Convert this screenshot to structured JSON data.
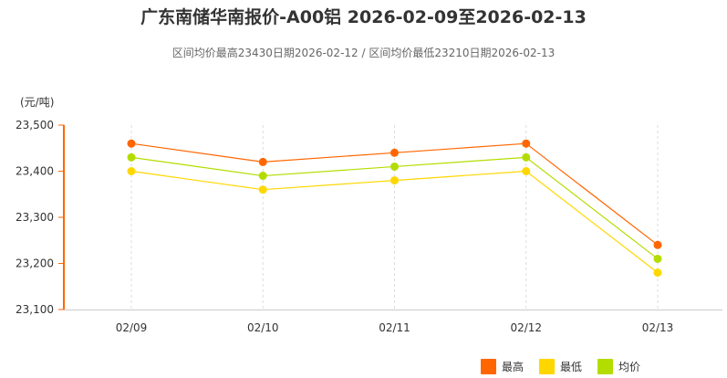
{
  "title": "广东南储华南报价-A00铝 2026-02-09至2026-02-13",
  "subtitle": "区间均价最高23430日期2026-02-12 / 区间均价最低23210日期2026-02-13",
  "unit_label": "(元/吨)",
  "colors": {
    "axis": "#ff6600",
    "grid": "#dddddd",
    "text": "#333333"
  },
  "chart_data": {
    "type": "line",
    "categories": [
      "02/09",
      "02/10",
      "02/11",
      "02/12",
      "02/13"
    ],
    "ylim": [
      23100,
      23500
    ],
    "yticks": [
      23100,
      23200,
      23300,
      23400,
      23500
    ],
    "ytick_labels": [
      "23,100",
      "23,200",
      "23,300",
      "23,400",
      "23,500"
    ],
    "grid": "vertical-dashed",
    "legend_position": "bottom-right",
    "series": [
      {
        "name": "最高",
        "color": "#ff6600",
        "values": [
          23460,
          23420,
          23440,
          23460,
          23240
        ]
      },
      {
        "name": "最低",
        "color": "#ffd700",
        "values": [
          23400,
          23360,
          23380,
          23400,
          23180
        ]
      },
      {
        "name": "均价",
        "color": "#b3dd00",
        "values": [
          23430,
          23390,
          23410,
          23430,
          23210
        ]
      }
    ]
  }
}
